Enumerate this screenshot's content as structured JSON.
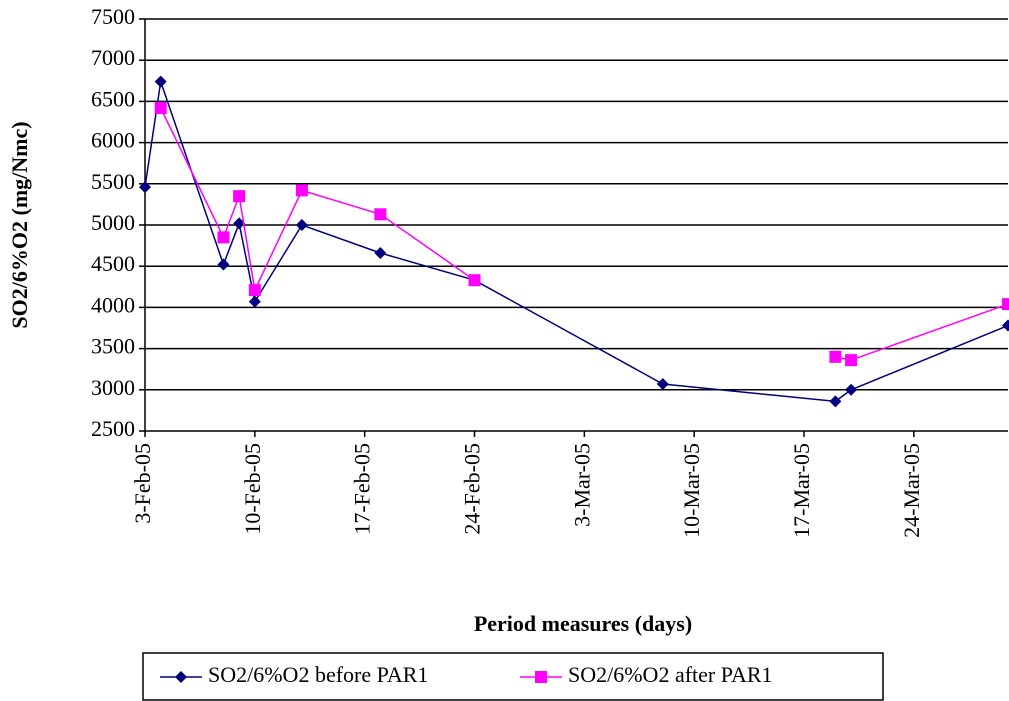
{
  "chart_data": {
    "type": "line",
    "x_label": "Period measures (days)",
    "y_label": "SO2/6%O2 (mg/Nmc)",
    "x": [
      "2005-02-03",
      "2005-02-04",
      "2005-02-08",
      "2005-02-09",
      "2005-02-10",
      "2005-02-13",
      "2005-02-18",
      "2005-02-24",
      "2005-03-08",
      "2005-03-19",
      "2005-03-20",
      "2005-03-30"
    ],
    "series": [
      {
        "name": "SO2/6%O2 before PAR1",
        "color": "#000080",
        "marker": "diamond",
        "values": [
          5460,
          6740,
          4520,
          5020,
          4070,
          5000,
          4660,
          4330,
          3070,
          2860,
          3000,
          3780
        ]
      },
      {
        "name": "SO2/6%O2 after PAR1",
        "color": "#ff00ff",
        "marker": "square",
        "values": [
          null,
          6420,
          4850,
          5350,
          4210,
          5420,
          5130,
          4330,
          null,
          3400,
          3360,
          4040
        ]
      }
    ],
    "xlim": [
      "2005-02-03",
      "2005-03-30"
    ],
    "xticks": [
      {
        "value": "2005-02-03",
        "label": "3-Feb-05"
      },
      {
        "value": "2005-02-10",
        "label": "10-Feb-05"
      },
      {
        "value": "2005-02-17",
        "label": "17-Feb-05"
      },
      {
        "value": "2005-02-24",
        "label": "24-Feb-05"
      },
      {
        "value": "2005-03-03",
        "label": "3-Mar-05"
      },
      {
        "value": "2005-03-10",
        "label": "10-Mar-05"
      },
      {
        "value": "2005-03-17",
        "label": "17-Mar-05"
      },
      {
        "value": "2005-03-24",
        "label": "24-Mar-05"
      }
    ],
    "ylim": [
      2500,
      7500
    ],
    "yticks": [
      2500,
      3000,
      3500,
      4000,
      4500,
      5000,
      5500,
      6000,
      6500,
      7000,
      7500
    ],
    "grid": true,
    "legend": "bottom"
  }
}
